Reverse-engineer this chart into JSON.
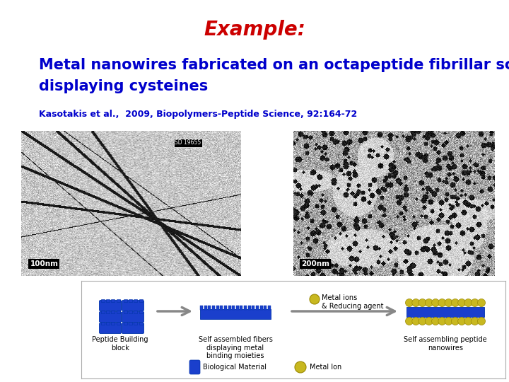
{
  "title": "Example:",
  "title_color": "#cc0000",
  "title_fontsize": 20,
  "title_style": "italic",
  "title_weight": "bold",
  "subtitle_line1": "Metal nanowires fabricated on an octapeptide fibrillar scaffold",
  "subtitle_line2": "displaying cysteines",
  "subtitle_color": "#0000cc",
  "subtitle_fontsize": 15,
  "subtitle_weight": "bold",
  "reference": "Kasotakis et al.,  2009, Biopolymers-Peptide Science, 92:164-72",
  "reference_color": "#0000cc",
  "reference_fontsize": 9,
  "reference_weight": "bold",
  "background_color": "#ffffff",
  "img1_label": "100nm",
  "img2_label": "200nm",
  "img1_id": "SD 19655",
  "diagram_label1": "Peptide Building\nblock",
  "diagram_label2": "Self assembled fibers\ndisplaying metal\nbinding moieties",
  "diagram_label3": "Self assembling peptide\nnanowires",
  "diagram_label_top": "Metal ions\n& Reducing agent",
  "diagram_bio_label": "Biological Material",
  "diagram_metal_label": "Metal Ion",
  "brick_color": "#1a3fcc",
  "gold_color": "#c8b820",
  "arrow_color": "#888888",
  "border_color": "#aaaaaa"
}
